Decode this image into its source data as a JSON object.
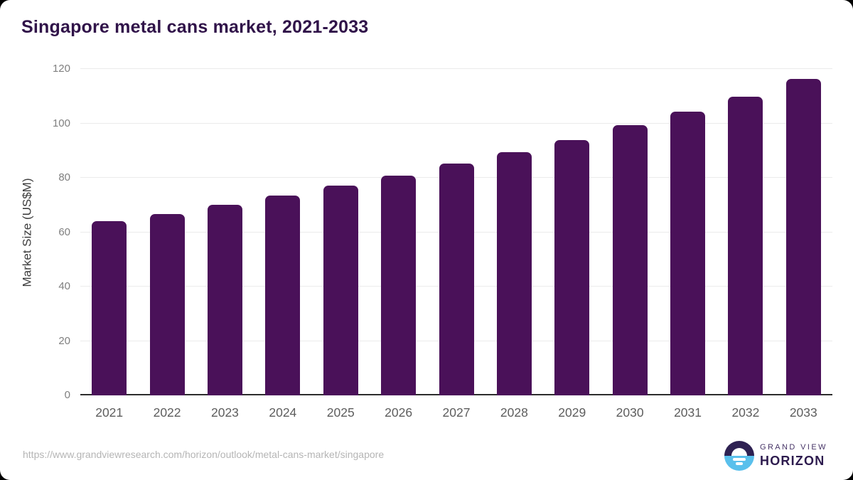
{
  "title": "Singapore metal cans market, 2021-2033",
  "chart_data": {
    "type": "bar",
    "title": "Singapore metal cans market, 2021-2033",
    "categories": [
      "2021",
      "2022",
      "2023",
      "2024",
      "2025",
      "2026",
      "2027",
      "2028",
      "2029",
      "2030",
      "2031",
      "2032",
      "2033"
    ],
    "values": [
      64.0,
      66.7,
      70.1,
      73.5,
      77.1,
      80.9,
      85.2,
      89.3,
      93.9,
      99.3,
      104.4,
      109.9,
      116.3
    ],
    "xlabel": "",
    "ylabel": "Market Size (US$M)",
    "ylim": [
      0,
      120
    ],
    "yticks": [
      0,
      20,
      40,
      60,
      80,
      100,
      120
    ],
    "grid": "horizontal",
    "legend": "none"
  },
  "footer": {
    "source_url": "https://www.grandviewresearch.com/horizon/outlook/metal-cans-market/singapore",
    "logo": {
      "line1": "GRAND VIEW",
      "line2": "HORIZON"
    }
  },
  "colors": {
    "title": "#301349",
    "bar": "#4a1159",
    "grid": "#ebebeb",
    "axis": "#2d2d2d",
    "y_tick_label": "#7f7f7f",
    "x_tick_label": "#5d5d5d",
    "url": "#b5b5b5",
    "logo_dark": "#2e2152",
    "logo_blue": "#5ac0ec"
  }
}
